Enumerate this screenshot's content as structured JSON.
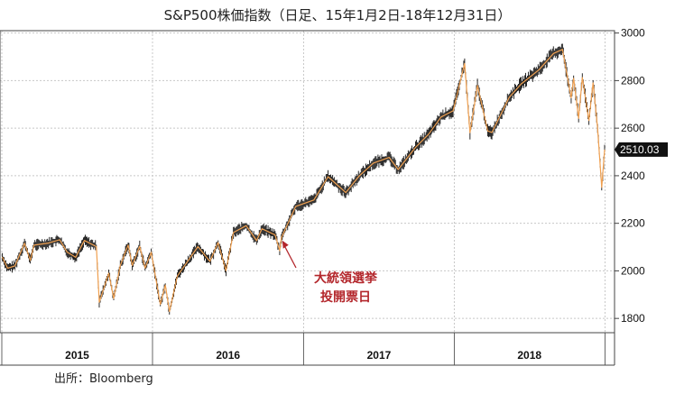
{
  "title": "S&P500株価指数（日足、15年1月2日-18年12月31日）",
  "source": "出所：Bloomberg",
  "annotation": {
    "line1": "大統領選挙",
    "line2": "投開票日",
    "target_date": "2016-11-08",
    "color": "#b3262b"
  },
  "last_value_label": "2510.03",
  "colors": {
    "candle": "#111111",
    "trend_line": "#f0a050",
    "grid": "#c8c8c8",
    "last_label_bg": "#111111"
  },
  "chart_data": {
    "type": "line",
    "title": "S&P500株価指数（日足、15年1月2日-18年12月31日）",
    "xlabel": "",
    "ylabel": "",
    "x_tick_labels": [
      "2015",
      "2016",
      "2017",
      "2018"
    ],
    "y_ticks": [
      1800,
      2000,
      2200,
      2400,
      2600,
      2800,
      3000
    ],
    "ylim": [
      1740,
      3010
    ],
    "xlim": [
      "2015-01-01",
      "2018-12-31"
    ],
    "y_axis_side": "right",
    "grid": true,
    "series": [
      {
        "values_note": "",
        "x": [
          "2015-01-02",
          "2015-01-15",
          "2015-02-02",
          "2015-02-25",
          "2015-03-11",
          "2015-03-20",
          "2015-04-24",
          "2015-05-21",
          "2015-06-08",
          "2015-06-29",
          "2015-07-20",
          "2015-08-18",
          "2015-08-25",
          "2015-09-17",
          "2015-09-29",
          "2015-10-15",
          "2015-11-03",
          "2015-11-13",
          "2015-12-01",
          "2015-12-14",
          "2015-12-29",
          "2016-01-20",
          "2016-02-01",
          "2016-02-11",
          "2016-03-01",
          "2016-04-20",
          "2016-05-19",
          "2016-06-08",
          "2016-06-27",
          "2016-07-15",
          "2016-08-15",
          "2016-09-09",
          "2016-09-22",
          "2016-10-24",
          "2016-11-04",
          "2016-11-08",
          "2016-12-13",
          "2017-01-26",
          "2017-03-01",
          "2017-04-13",
          "2017-05-16",
          "2017-06-19",
          "2017-07-27",
          "2017-08-18",
          "2017-09-29",
          "2017-10-31",
          "2017-11-30",
          "2017-12-29",
          "2018-01-26",
          "2018-02-08",
          "2018-02-26",
          "2018-03-23",
          "2018-04-02",
          "2018-05-14",
          "2018-06-12",
          "2018-07-25",
          "2018-08-29",
          "2018-09-20",
          "2018-10-11",
          "2018-10-17",
          "2018-10-29",
          "2018-11-07",
          "2018-11-23",
          "2018-12-03",
          "2018-12-14",
          "2018-12-24",
          "2018-12-31"
        ],
        "values": [
          2058,
          2011,
          2021,
          2116,
          2044,
          2108,
          2117,
          2131,
          2079,
          2057,
          2128,
          2102,
          1868,
          1990,
          1884,
          2023,
          2109,
          2023,
          2103,
          2012,
          2078,
          1859,
          1940,
          1829,
          1978,
          2102,
          2040,
          2119,
          2001,
          2161,
          2190,
          2127,
          2177,
          2151,
          2085,
          2139,
          2271,
          2298,
          2396,
          2329,
          2400,
          2453,
          2477,
          2426,
          2519,
          2575,
          2647,
          2673,
          2872,
          2581,
          2779,
          2588,
          2582,
          2730,
          2786,
          2846,
          2914,
          2931,
          2728,
          2809,
          2641,
          2813,
          2632,
          2790,
          2600,
          2351,
          2510
        ]
      }
    ],
    "annotations": [
      "大統領選挙",
      "投開票日"
    ],
    "last_value": 2510.03
  }
}
